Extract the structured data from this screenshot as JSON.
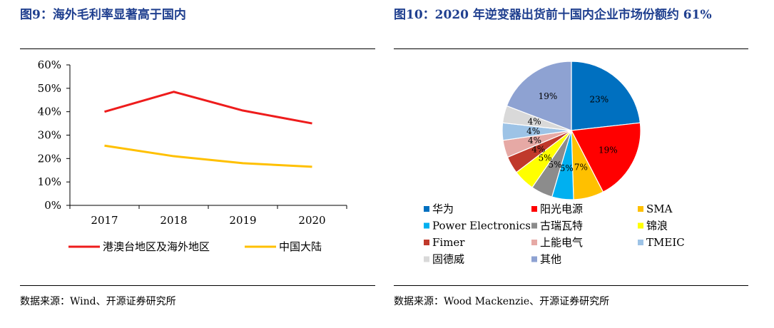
{
  "left": {
    "title": "图9：海外毛利率显著高于国内",
    "source": "数据来源：Wind、开源证券研究所"
  },
  "right": {
    "title": "图10：2020 年逆变器出货前十国内企业市场份额约 61%",
    "source": "数据来源：Wood Mackenzie、开源证券研究所"
  },
  "bottom_fragment": "",
  "chart_data": [
    {
      "type": "line",
      "title": "",
      "xlabel": "",
      "ylabel": "",
      "categories": [
        "2017",
        "2018",
        "2019",
        "2020"
      ],
      "ylim": [
        0,
        60
      ],
      "yticks": [
        "0%",
        "10%",
        "20%",
        "30%",
        "40%",
        "50%",
        "60%"
      ],
      "grid": false,
      "legend_position": "bottom",
      "series": [
        {
          "name": "港澳台地区及海外地区",
          "values": [
            40,
            48.5,
            40.5,
            35
          ],
          "color": "#ee1c1c"
        },
        {
          "name": "中国大陆",
          "values": [
            25.5,
            21,
            18,
            16.5
          ],
          "color": "#ffc000"
        }
      ]
    },
    {
      "type": "pie",
      "title": "",
      "legend_position": "bottom",
      "slices": [
        {
          "label": "华为",
          "value": 23,
          "text": "23%",
          "color": "#0070c0"
        },
        {
          "label": "阳光电源",
          "value": 19,
          "text": "19%",
          "color": "#ff0000"
        },
        {
          "label": "SMA",
          "value": 7,
          "text": "7%",
          "color": "#ffc000"
        },
        {
          "label": "Power Electronics",
          "value": 5,
          "text": "5%",
          "color": "#00b0f0"
        },
        {
          "label": "古瑞瓦特",
          "value": 5,
          "text": "5%",
          "color": "#8c8c8c"
        },
        {
          "label": "锦浪",
          "value": 5,
          "text": "5%",
          "color": "#ffff00"
        },
        {
          "label": "Fimer",
          "value": 4,
          "text": "4%",
          "color": "#c0392b"
        },
        {
          "label": "上能电气",
          "value": 4,
          "text": "4%",
          "color": "#e6a9a5"
        },
        {
          "label": "TMEIC",
          "value": 4,
          "text": "4%",
          "color": "#9dc3e6"
        },
        {
          "label": "固德威",
          "value": 4,
          "text": "4%",
          "color": "#d9d9d9"
        },
        {
          "label": "其他",
          "value": 19,
          "text": "19%",
          "color": "#8ea2d2"
        }
      ]
    }
  ]
}
